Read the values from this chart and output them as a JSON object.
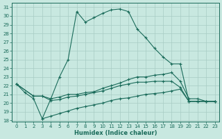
{
  "xlabel": "Humidex (Indice chaleur)",
  "ylabel": "",
  "background_color": "#c8e8e0",
  "grid_color": "#a8ccc4",
  "line_color": "#1a6b5a",
  "xmin": 0,
  "xmax": 23,
  "ymin": 18,
  "ymax": 31,
  "yticks": [
    18,
    19,
    20,
    21,
    22,
    23,
    24,
    25,
    26,
    27,
    28,
    29,
    30,
    31
  ],
  "xticks": [
    0,
    1,
    2,
    3,
    4,
    5,
    6,
    7,
    8,
    9,
    10,
    11,
    12,
    13,
    14,
    15,
    16,
    17,
    18,
    19,
    20,
    21,
    22,
    23
  ],
  "curve1_x": [
    0,
    1,
    2,
    3,
    4,
    5,
    6,
    7,
    8,
    9,
    10,
    11,
    12,
    13,
    14,
    15,
    16,
    17,
    18,
    19,
    20,
    21,
    22,
    23
  ],
  "curve1_y": [
    22.2,
    21.2,
    20.5,
    18.2,
    20.5,
    23.0,
    25.0,
    30.5,
    29.3,
    29.8,
    30.3,
    30.7,
    30.8,
    30.5,
    28.5,
    27.5,
    26.3,
    25.3,
    24.5,
    24.5,
    20.2,
    20.2,
    20.2,
    20.2
  ],
  "curve2_x": [
    0,
    2,
    3,
    4,
    5,
    6,
    7,
    8,
    9,
    10,
    11,
    12,
    13,
    14,
    15,
    16,
    17,
    18,
    19,
    20,
    21,
    22,
    23
  ],
  "curve2_y": [
    22.2,
    20.8,
    20.8,
    20.5,
    20.7,
    21.0,
    21.0,
    21.2,
    21.3,
    21.7,
    22.0,
    22.3,
    22.7,
    23.0,
    23.0,
    23.2,
    23.3,
    23.5,
    22.5,
    20.5,
    20.5,
    20.2,
    20.2
  ],
  "curve3_x": [
    0,
    2,
    3,
    4,
    5,
    6,
    7,
    8,
    9,
    10,
    11,
    12,
    13,
    14,
    15,
    16,
    17,
    18,
    19,
    20,
    21,
    22,
    23
  ],
  "curve3_y": [
    22.2,
    20.8,
    20.8,
    20.3,
    20.4,
    20.7,
    20.8,
    21.0,
    21.2,
    21.4,
    21.7,
    22.0,
    22.2,
    22.4,
    22.4,
    22.5,
    22.5,
    22.5,
    21.8,
    20.2,
    20.2,
    20.2,
    20.2
  ],
  "curve4_x": [
    3,
    4,
    5,
    6,
    7,
    8,
    9,
    10,
    11,
    12,
    13,
    14,
    15,
    16,
    17,
    18,
    19,
    20,
    21,
    22,
    23
  ],
  "curve4_y": [
    18.2,
    18.5,
    18.8,
    19.1,
    19.4,
    19.6,
    19.8,
    20.0,
    20.3,
    20.5,
    20.6,
    20.8,
    21.0,
    21.1,
    21.2,
    21.4,
    21.6,
    20.2,
    20.2,
    20.2,
    20.2
  ]
}
